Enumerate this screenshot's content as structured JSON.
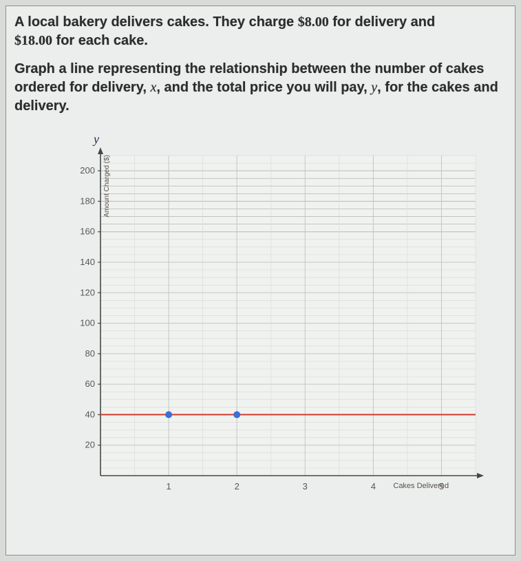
{
  "problem": {
    "line1_prefix": "A local bakery delivers cakes. They charge ",
    "delivery_charge": "$8.00",
    "line1_mid": " for delivery and",
    "per_cake_charge": "$18.00",
    "line2_suffix": " for each cake."
  },
  "instruction": {
    "part1": "Graph a line representing the relationship between the number of cakes ordered for delivery, ",
    "xvar": "x",
    "part2": ", and the total price you will pay, ",
    "yvar": "y",
    "part3": ", for the cakes and delivery."
  },
  "chart": {
    "type": "line",
    "y_axis_variable": "y",
    "x_axis_variable": "x",
    "y_label_text": "Amount Charged ($)",
    "x_label_text": "Cakes Delivered",
    "y_ticks": [
      20,
      40,
      60,
      80,
      100,
      120,
      140,
      160,
      180,
      200
    ],
    "x_ticks": [
      1,
      2,
      3,
      4,
      5
    ],
    "ylim": [
      0,
      210
    ],
    "xlim": [
      0,
      5.5
    ],
    "plotted_line_y": 40,
    "plotted_points": [
      {
        "x": 1,
        "y": 40
      },
      {
        "x": 2,
        "y": 40
      }
    ],
    "colors": {
      "background": "#eceeed",
      "plot_bg": "#f0f2f0",
      "grid_major": "#c2c6c2",
      "grid_minor": "#d8dcd8",
      "grid_dark_band": "#b8bcb8",
      "axis": "#444746",
      "tick_text": "#555856",
      "line": "#d03b2e",
      "point": "#3b6fd6",
      "var_text": "#1f2a44",
      "label_text": "#5a5048"
    },
    "sizes": {
      "tick_fontsize": 13,
      "var_fontsize": 18,
      "axis_label_fontsize": 10,
      "line_width": 2,
      "point_radius": 5
    }
  }
}
